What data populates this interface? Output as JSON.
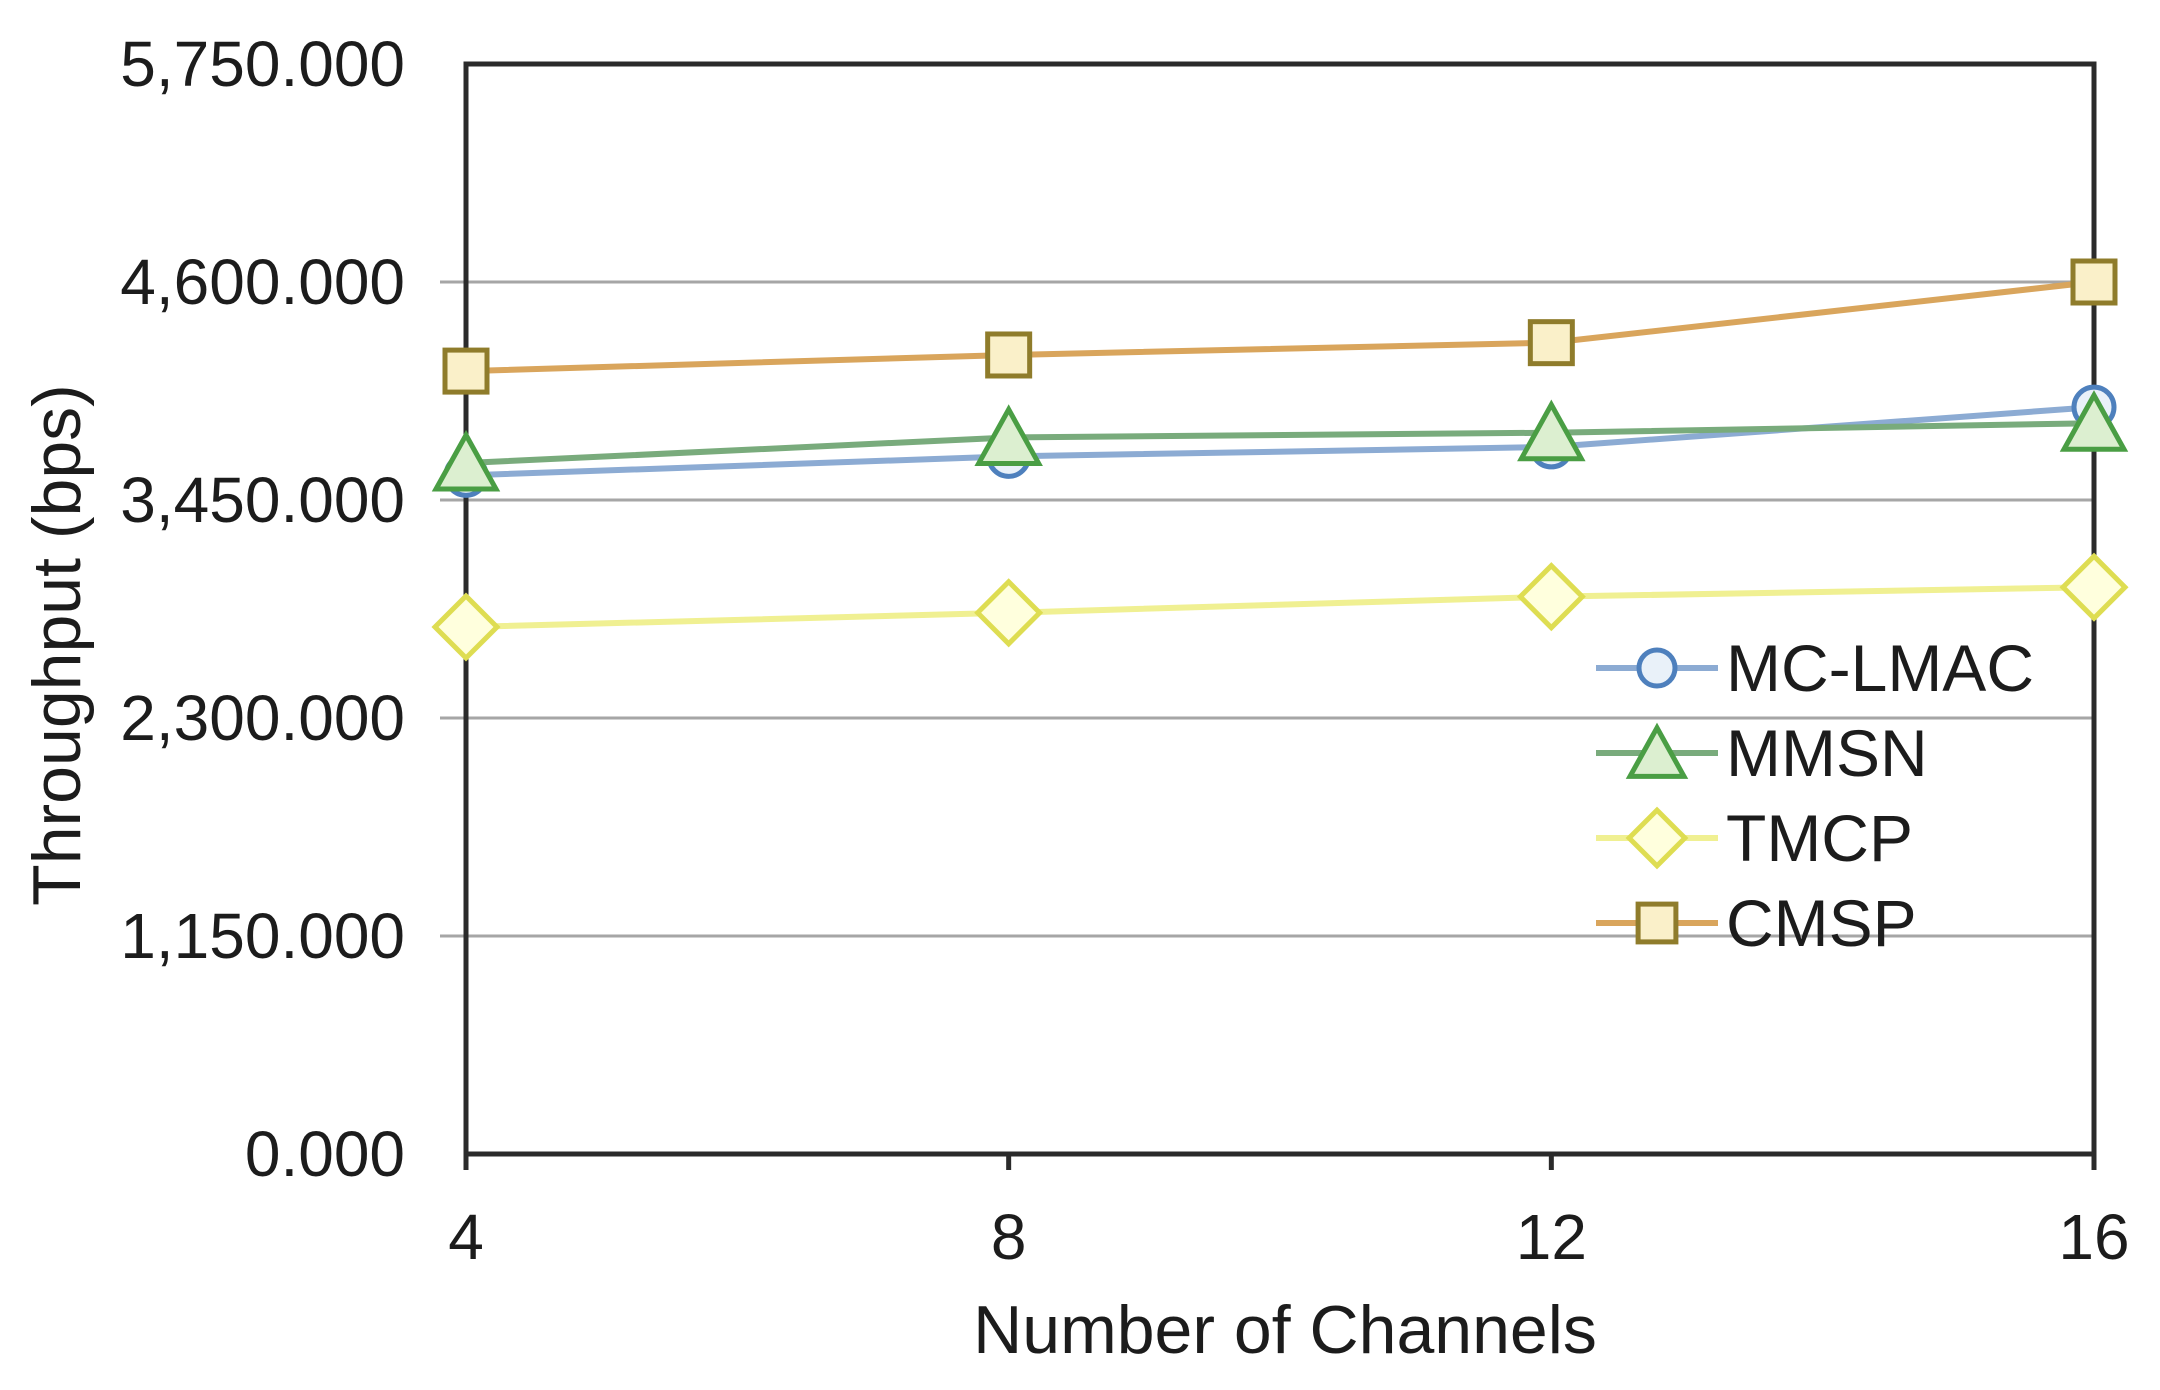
{
  "figure": {
    "background": "#ffffff",
    "text_color": "#1c1c1c",
    "axis_color": "#2b2b2b",
    "gridline_color": "#a6a6a6"
  },
  "chart_data": {
    "type": "line",
    "title": "",
    "xlabel": "Number of Channels",
    "ylabel": "Throughput (bps)",
    "x": [
      4,
      8,
      12,
      16
    ],
    "xlim": [
      4,
      16
    ],
    "ylim": [
      0,
      5750
    ],
    "ytick_interval": 1150,
    "grid": "horizontal",
    "legend_position": "inside-right",
    "yticks": [
      {
        "value": 5750,
        "label": "5,750.000"
      },
      {
        "value": 4600,
        "label": "4,600.000"
      },
      {
        "value": 3450,
        "label": "3,450.000"
      },
      {
        "value": 2300,
        "label": "2,300.000"
      },
      {
        "value": 1150,
        "label": "1,150.000"
      },
      {
        "value": 0,
        "label": "0.000"
      }
    ],
    "xticks": [
      {
        "value": 4,
        "label": "4"
      },
      {
        "value": 8,
        "label": "8"
      },
      {
        "value": 12,
        "label": "12"
      },
      {
        "value": 16,
        "label": "16"
      }
    ],
    "series": [
      {
        "name": "MC-LMAC",
        "marker": "circle",
        "line_color": "#8cabd3",
        "marker_border": "#4e80bd",
        "marker_fill": "#e9f1f9",
        "values": [
          3580,
          3680,
          3730,
          3940
        ]
      },
      {
        "name": "MMSN",
        "marker": "triangle",
        "line_color": "#79ab7c",
        "marker_border": "#4a9e44",
        "marker_fill": "#dcefd0",
        "values": [
          3645,
          3780,
          3805,
          3855
        ]
      },
      {
        "name": "TMCP",
        "marker": "diamond",
        "line_color": "#f0f092",
        "marker_border": "#dedd52",
        "marker_fill": "#ffffdd",
        "values": [
          2780,
          2855,
          2940,
          2990
        ]
      },
      {
        "name": "CMSP",
        "marker": "square",
        "line_color": "#d9a55c",
        "marker_border": "#8f7c2b",
        "marker_fill": "#faf0c9",
        "values": [
          4130,
          4215,
          4280,
          4600
        ]
      }
    ]
  }
}
